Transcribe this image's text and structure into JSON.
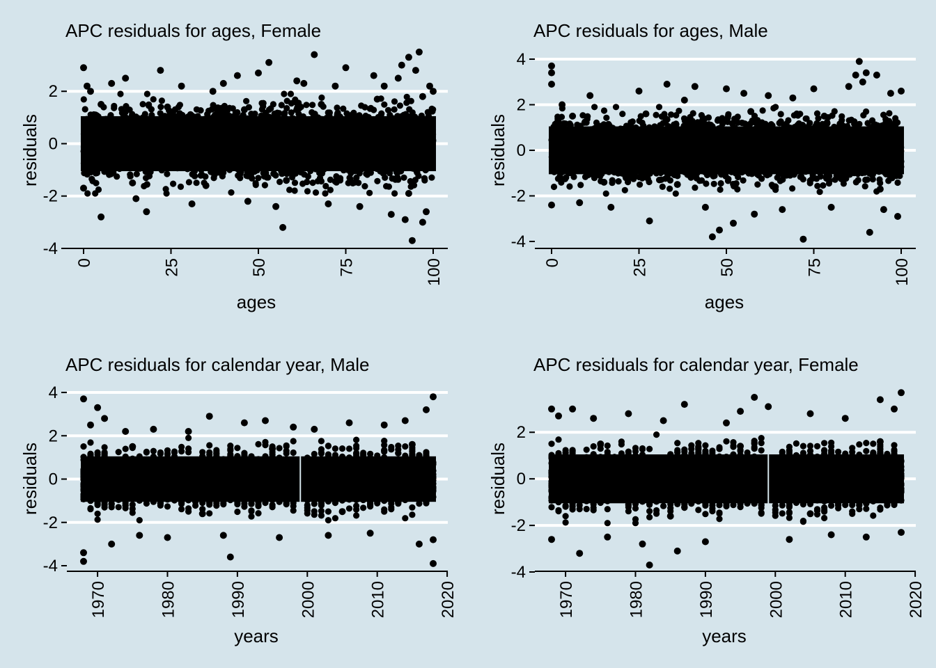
{
  "chart_data": [
    {
      "type": "scatter",
      "title": "APC residuals for ages, Female",
      "xlabel": "ages",
      "ylabel": "residuals",
      "xlim": [
        0,
        100
      ],
      "ylim": [
        -4,
        3.5
      ],
      "xticks": [
        0,
        25,
        50,
        75,
        100
      ],
      "yticks": [
        -4,
        -2,
        0,
        2
      ],
      "grid": true,
      "marker_color": "#000000",
      "series": [
        {
          "x": [
            0,
            0,
            1,
            2,
            5,
            8,
            12,
            15,
            18,
            22,
            28,
            31,
            37,
            40,
            44,
            47,
            50,
            53,
            55,
            57,
            61,
            63,
            66,
            70,
            72,
            75,
            79,
            83,
            86,
            88,
            90,
            91,
            92,
            93,
            94,
            95,
            96,
            97,
            98,
            99,
            100,
            5,
            14,
            24,
            35,
            46,
            58,
            68,
            77,
            84,
            93,
            97
          ],
          "y": [
            2.9,
            -1.7,
            2.2,
            2.0,
            -2.8,
            2.3,
            2.5,
            -2.1,
            -2.6,
            2.8,
            2.2,
            -2.3,
            2.0,
            2.3,
            2.6,
            -2.2,
            2.7,
            3.1,
            -2.4,
            -3.2,
            2.4,
            2.3,
            3.4,
            -2.3,
            2.2,
            2.9,
            -2.4,
            2.6,
            2.2,
            -2.7,
            2.5,
            3.0,
            -2.9,
            3.3,
            -3.7,
            2.8,
            3.5,
            -3.0,
            -2.6,
            2.2,
            2.0,
            1.5,
            -1.5,
            1.4,
            -1.6,
            1.3,
            -1.4,
            1.5,
            -1.5,
            1.7,
            -1.9,
            1.8
          ]
        }
      ]
    },
    {
      "type": "scatter",
      "title": "APC residuals for ages, Male",
      "xlabel": "ages",
      "ylabel": "residuals",
      "xlim": [
        0,
        100
      ],
      "ylim": [
        -4,
        4
      ],
      "xticks": [
        0,
        25,
        50,
        75,
        100
      ],
      "yticks": [
        -4,
        -2,
        0,
        2,
        4
      ],
      "grid": true,
      "marker_color": "#000000",
      "series": [
        {
          "x": [
            0,
            0,
            0,
            0,
            3,
            8,
            11,
            17,
            25,
            28,
            33,
            38,
            41,
            44,
            46,
            48,
            50,
            52,
            55,
            58,
            62,
            66,
            69,
            72,
            75,
            80,
            85,
            87,
            88,
            89,
            90,
            91,
            93,
            95,
            97,
            99,
            100,
            6,
            15,
            27,
            36,
            57,
            64,
            78,
            94
          ],
          "y": [
            3.7,
            3.4,
            2.9,
            -2.4,
            2.0,
            -2.3,
            2.4,
            -2.5,
            2.6,
            -3.1,
            2.9,
            2.2,
            2.8,
            -2.5,
            -3.8,
            -3.5,
            2.7,
            -3.2,
            2.5,
            -2.8,
            2.4,
            -2.6,
            2.3,
            -3.9,
            2.7,
            -2.5,
            2.8,
            3.3,
            3.9,
            3.0,
            3.4,
            -3.6,
            3.3,
            -2.6,
            2.5,
            -2.9,
            2.6,
            1.5,
            -1.4,
            1.6,
            -1.5,
            1.7,
            -1.6,
            1.5,
            -1.7
          ]
        }
      ]
    },
    {
      "type": "scatter",
      "title": "APC residuals for calendar year, Male",
      "xlabel": "years",
      "ylabel": "residuals",
      "xlim": [
        1968,
        2018
      ],
      "ylim": [
        -4,
        4
      ],
      "xticks": [
        1970,
        1980,
        1990,
        2000,
        2010,
        2020
      ],
      "yticks": [
        -4,
        -2,
        0,
        2,
        4
      ],
      "grid": true,
      "marker_color": "#000000",
      "series": [
        {
          "x": [
            1968,
            1968,
            1968,
            1969,
            1970,
            1971,
            1972,
            1974,
            1976,
            1978,
            1980,
            1983,
            1986,
            1988,
            1989,
            1991,
            1994,
            1996,
            1998,
            2001,
            2003,
            2006,
            2009,
            2011,
            2014,
            2016,
            2017,
            2018,
            2018,
            2018,
            1975,
            1985,
            1995,
            2005,
            2015
          ],
          "y": [
            3.7,
            -3.4,
            -3.8,
            2.5,
            3.3,
            2.8,
            -3.0,
            2.2,
            -2.6,
            2.3,
            -2.7,
            2.2,
            2.9,
            -2.6,
            -3.6,
            2.6,
            2.7,
            -2.7,
            2.4,
            2.3,
            -2.6,
            2.6,
            -2.5,
            2.5,
            2.7,
            -3.0,
            3.2,
            3.8,
            -3.9,
            -2.8,
            1.5,
            -1.6,
            1.4,
            -1.5,
            1.6
          ]
        }
      ]
    },
    {
      "type": "scatter",
      "title": "APC residuals for calendar year, Female",
      "xlabel": "years",
      "ylabel": "residuals",
      "xlim": [
        1968,
        2018
      ],
      "ylim": [
        -4,
        3.8
      ],
      "xticks": [
        1970,
        1980,
        1990,
        2000,
        2010,
        2020
      ],
      "yticks": [
        -4,
        -2,
        0,
        2
      ],
      "grid": true,
      "marker_color": "#000000",
      "series": [
        {
          "x": [
            1968,
            1968,
            1969,
            1971,
            1972,
            1974,
            1976,
            1979,
            1981,
            1982,
            1984,
            1986,
            1987,
            1990,
            1993,
            1995,
            1997,
            1999,
            2002,
            2005,
            2008,
            2010,
            2013,
            2015,
            2017,
            2018,
            2018,
            1975,
            1985,
            1995,
            2005,
            2015
          ],
          "y": [
            3.0,
            -2.6,
            2.7,
            3.0,
            -3.2,
            2.6,
            -2.5,
            2.8,
            -2.8,
            -3.7,
            2.5,
            -3.1,
            3.2,
            -2.7,
            2.4,
            2.9,
            3.5,
            3.1,
            -2.6,
            2.8,
            -2.4,
            2.6,
            -2.5,
            3.4,
            3.0,
            3.7,
            -2.3,
            1.5,
            -1.6,
            1.4,
            -1.5,
            1.6
          ]
        }
      ]
    }
  ]
}
